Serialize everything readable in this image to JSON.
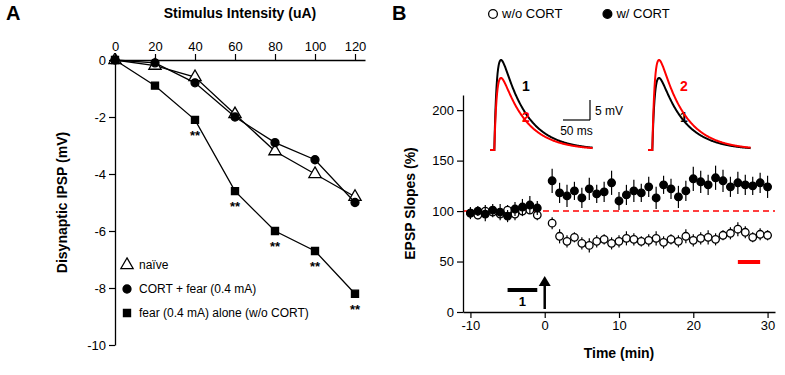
{
  "chart_data": [
    {
      "type": "line",
      "panel_label": "A",
      "x_label": "Stimulus Intensity (uA)",
      "y_label": "Disynaptic IPSP (mV)",
      "x": [
        0,
        20,
        40,
        60,
        80,
        100,
        120
      ],
      "xlim": [
        0,
        125
      ],
      "xticks": [
        0,
        20,
        40,
        60,
        80,
        100,
        120
      ],
      "ylim": [
        -10,
        0
      ],
      "yticks": [
        0,
        -2,
        -4,
        -6,
        -8,
        -10
      ],
      "grid": false,
      "legend": "lower left",
      "series": [
        {
          "name": "naïve",
          "color": "#000000",
          "marker": "triangle-open",
          "values": [
            0,
            -0.2,
            -0.6,
            -1.9,
            -3.2,
            -4.0,
            -4.8
          ]
        },
        {
          "name": "CORT + fear (0.4 mA)",
          "color": "#000000",
          "marker": "circle",
          "values": [
            0,
            -0.1,
            -0.8,
            -2.0,
            -2.9,
            -3.5,
            -5.0
          ]
        },
        {
          "name": "fear (0.4 mA) alone (w/o CORT)",
          "color": "#000000",
          "marker": "square",
          "values": [
            0,
            -0.9,
            -2.1,
            -4.6,
            -6.0,
            -6.7,
            -8.2
          ]
        }
      ],
      "annotations": [
        {
          "text": "**",
          "x": 40
        },
        {
          "text": "**",
          "x": 60
        },
        {
          "text": "**",
          "x": 80
        },
        {
          "text": "**",
          "x": 100
        },
        {
          "text": "**",
          "x": 120
        }
      ]
    },
    {
      "type": "scatter",
      "panel_label": "B",
      "x_label": "Time (min)",
      "y_label": "EPSP Slopes (%)",
      "x": [
        -10,
        -9,
        -8,
        -7,
        -6,
        -5,
        -4,
        -3,
        -2,
        -1,
        1,
        2,
        3,
        4,
        5,
        6,
        7,
        8,
        9,
        10,
        11,
        12,
        13,
        14,
        15,
        16,
        17,
        18,
        19,
        20,
        21,
        22,
        23,
        24,
        25,
        26,
        27,
        28,
        29,
        30
      ],
      "xlim": [
        -11,
        31
      ],
      "xticks": [
        -10,
        0,
        10,
        20,
        30
      ],
      "ylim": [
        0,
        215
      ],
      "yticks": [
        0,
        50,
        100,
        150,
        200
      ],
      "grid": false,
      "legend": "top",
      "series": [
        {
          "name": "w/o CORT",
          "color": "#000000",
          "marker": "circle-open",
          "values": [
            98,
            96,
            100,
            99,
            97,
            101,
            97,
            100,
            101,
            96,
            88,
            75,
            70,
            74,
            68,
            66,
            70,
            72,
            68,
            70,
            73,
            72,
            70,
            71,
            73,
            69,
            72,
            70,
            75,
            71,
            73,
            74,
            72,
            76,
            78,
            82,
            79,
            74,
            77,
            76
          ],
          "errors": [
            5,
            4,
            6,
            5,
            4,
            5,
            6,
            5,
            4,
            5,
            6,
            7,
            6,
            5,
            6,
            7,
            6,
            5,
            6,
            6,
            7,
            6,
            5,
            6,
            7,
            6,
            5,
            6,
            7,
            6,
            6,
            7,
            6,
            5,
            6,
            7,
            6,
            5,
            6,
            5
          ]
        },
        {
          "name": "w/ CORT",
          "color": "#000000",
          "marker": "circle",
          "values": [
            98,
            100,
            97,
            101,
            99,
            95,
            102,
            104,
            106,
            103,
            130,
            118,
            115,
            120,
            113,
            122,
            117,
            119,
            128,
            110,
            116,
            120,
            118,
            124,
            113,
            126,
            122,
            114,
            120,
            132,
            129,
            126,
            133,
            130,
            124,
            128,
            126,
            125,
            128,
            124
          ],
          "errors": [
            6,
            5,
            7,
            6,
            8,
            6,
            7,
            8,
            9,
            7,
            12,
            10,
            11,
            9,
            10,
            11,
            9,
            10,
            12,
            9,
            10,
            11,
            9,
            10,
            11,
            9,
            10,
            11,
            10,
            12,
            11,
            10,
            12,
            11,
            10,
            11,
            10,
            9,
            10,
            11
          ]
        }
      ],
      "reference_line": {
        "y": 100,
        "color": "#ff0000",
        "line_style": "dashed"
      },
      "periods": [
        {
          "label": "1",
          "x0": -5,
          "x1": -1,
          "color": "#000000"
        },
        {
          "x0": 26,
          "x1": 29,
          "color": "#ff0000"
        }
      ],
      "events": [
        {
          "x": 0
        }
      ],
      "insets": [
        {
          "traces": [
            {
              "label": "1",
              "color": "#000000",
              "peak": 22.5
            },
            {
              "label": "2",
              "color": "#ff0000",
              "peak": 18
            }
          ]
        },
        {
          "traces": [
            {
              "label": "1",
              "color": "#000000",
              "peak": 18
            },
            {
              "label": "2",
              "color": "#ff0000",
              "peak": 22.5
            }
          ]
        }
      ],
      "scale_bar": {
        "y": 5,
        "y_label": "5 mV",
        "x": 50,
        "x_label": "50 ms"
      }
    }
  ]
}
